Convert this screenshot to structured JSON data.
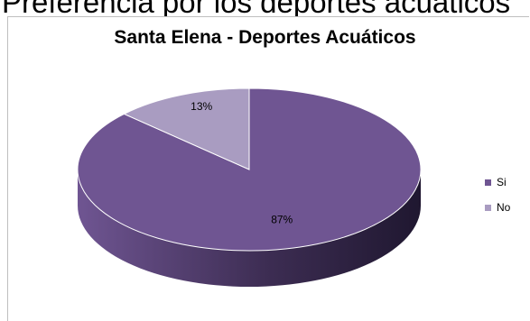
{
  "header": {
    "text": "Preferencia por los deportes acuáticos"
  },
  "chart_data": {
    "type": "pie",
    "title": "Santa Elena - Deportes Acuáticos",
    "slices": [
      {
        "label": "Si",
        "value": 87,
        "display": "87%",
        "color": "#6f5592",
        "side_color": "#3d2d53"
      },
      {
        "label": "No",
        "value": 13,
        "display": "13%",
        "color": "#a99cc1",
        "side_color": "#6e6283"
      }
    ],
    "legend_position": "right"
  }
}
